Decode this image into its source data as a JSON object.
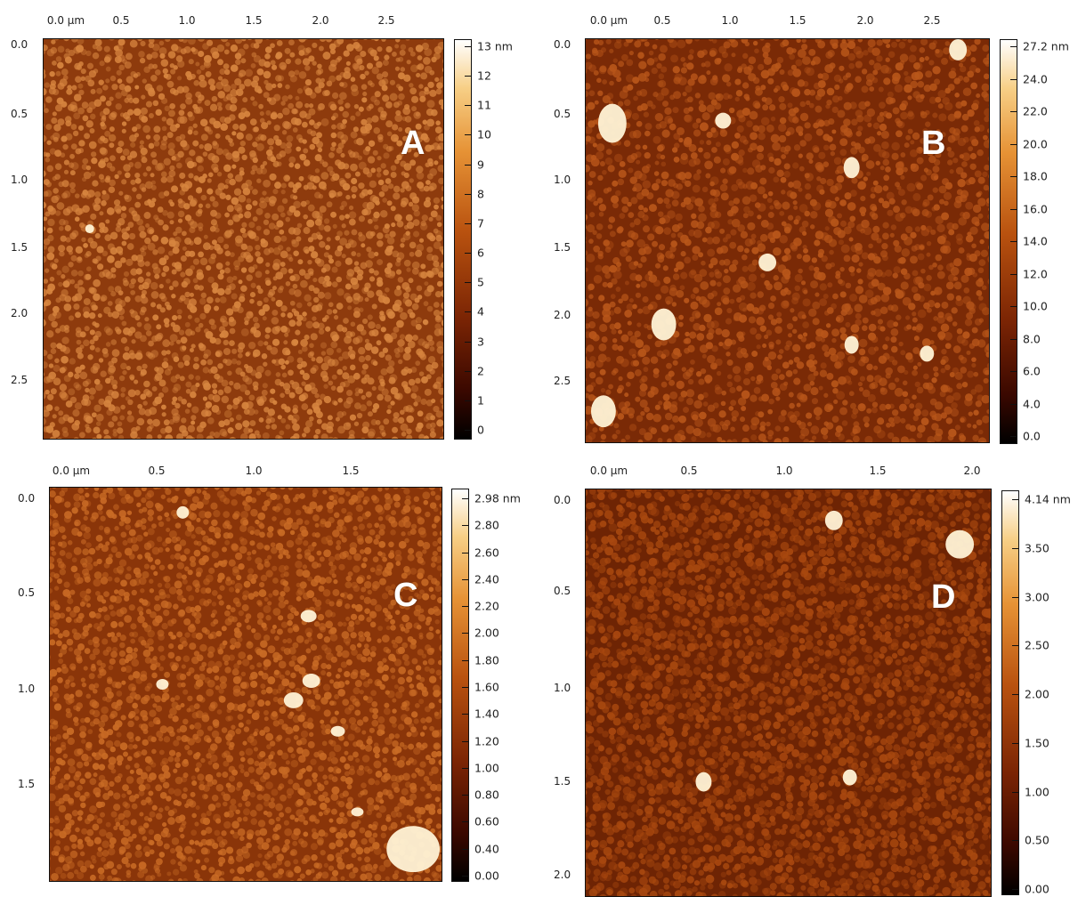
{
  "panels": [
    {
      "id": "A",
      "letter": "A",
      "x_ticks": [
        "0.0 µm",
        "0.5",
        "1.0",
        "1.5",
        "2.0",
        "2.5"
      ],
      "y_ticks": [
        "0.0",
        "0.5",
        "1.0",
        "1.5",
        "2.0",
        "2.5"
      ],
      "colorbar_labels": [
        "13 nm",
        "12",
        "11",
        "10",
        "9",
        "8",
        "7",
        "6",
        "5",
        "4",
        "3",
        "2",
        "1",
        "0"
      ],
      "colors": {
        "base": "#8e3b0d",
        "grain": "#d7853f"
      }
    },
    {
      "id": "B",
      "letter": "B",
      "x_ticks": [
        "0.0 µm",
        "0.5",
        "1.0",
        "1.5",
        "2.0",
        "2.5"
      ],
      "y_ticks": [
        "0.0",
        "0.5",
        "1.0",
        "1.5",
        "2.0",
        "2.5"
      ],
      "colorbar_labels": [
        "27.2 nm",
        "24.0",
        "22.0",
        "20.0",
        "18.0",
        "16.0",
        "14.0",
        "12.0",
        "10.0",
        "8.0",
        "6.0",
        "4.0",
        "0.0"
      ],
      "colors": {
        "base": "#7a2a06",
        "grain": "#b8561a"
      }
    },
    {
      "id": "C",
      "letter": "C",
      "x_ticks": [
        "0.0 µm",
        "0.5",
        "1.0",
        "1.5"
      ],
      "y_ticks": [
        "0.0",
        "0.5",
        "1.0",
        "1.5"
      ],
      "colorbar_labels": [
        "2.98 nm",
        "2.80",
        "2.60",
        "2.40",
        "2.20",
        "2.00",
        "1.80",
        "1.60",
        "1.40",
        "1.20",
        "1.00",
        "0.80",
        "0.60",
        "0.40",
        "0.00"
      ],
      "colors": {
        "base": "#8a3509",
        "grain": "#c96b25"
      }
    },
    {
      "id": "D",
      "letter": "D",
      "x_ticks": [
        "0.0 µm",
        "0.5",
        "1.0",
        "1.5",
        "2.0"
      ],
      "y_ticks": [
        "0.0",
        "0.5",
        "1.0",
        "1.5",
        "2.0"
      ],
      "colorbar_labels": [
        "4.14 nm",
        "3.50",
        "3.00",
        "2.50",
        "2.00",
        "1.50",
        "1.00",
        "0.50",
        "0.00"
      ],
      "colors": {
        "base": "#6e2404",
        "grain": "#a8480f"
      }
    }
  ]
}
